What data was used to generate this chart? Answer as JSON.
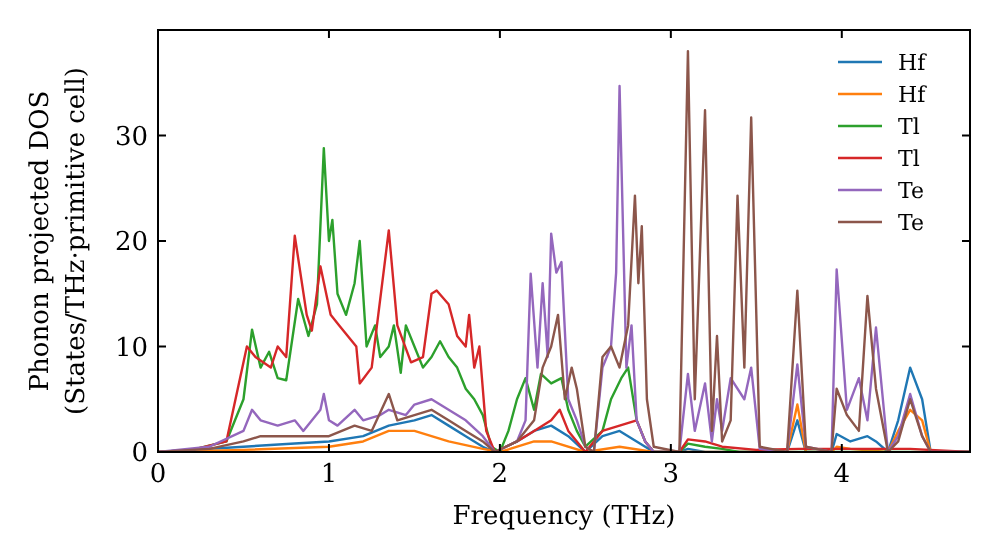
{
  "chart_data": {
    "type": "line",
    "xlabel": "Frequency (THz)",
    "ylabel": "Phonon projected DOS\n(States/THz·primitive cell)",
    "xlim": [
      0,
      4.75
    ],
    "xticks": [
      0,
      1,
      2,
      3,
      4
    ],
    "ylim": [
      0,
      40
    ],
    "yticks": [
      0,
      10,
      20,
      30
    ],
    "grid": false,
    "legend": "top right",
    "marker": "none",
    "line_style": "solid",
    "series": [
      {
        "name": "Hf",
        "color": "#1f77b4",
        "x": [
          0,
          0.5,
          0.8,
          1.0,
          1.2,
          1.35,
          1.5,
          1.6,
          1.7,
          1.8,
          1.9,
          1.97,
          2.1,
          2.2,
          2.3,
          2.4,
          2.5,
          2.6,
          2.7,
          2.85,
          2.9,
          3.05,
          3.1,
          3.2,
          3.68,
          3.74,
          3.79,
          3.94,
          3.97,
          4.05,
          4.15,
          4.2,
          4.27,
          4.33,
          4.4,
          4.47,
          4.52,
          4.75
        ],
        "values": [
          0,
          0.5,
          0.8,
          1,
          1.5,
          2.5,
          3,
          3.5,
          2.5,
          1.5,
          0.5,
          0,
          1,
          2,
          2.5,
          1.5,
          0,
          1.5,
          2,
          0.5,
          0,
          0,
          0.3,
          0,
          0,
          3,
          0,
          0,
          1.7,
          1,
          1.5,
          1,
          0,
          3,
          8,
          5,
          0,
          0
        ]
      },
      {
        "name": "Hf",
        "color": "#ff7f0e",
        "x": [
          0,
          0.5,
          1.0,
          1.2,
          1.35,
          1.5,
          1.6,
          1.7,
          1.9,
          2.0,
          2.2,
          2.3,
          2.5,
          2.7,
          2.9,
          3.68,
          3.74,
          3.79,
          3.94,
          3.97,
          4.05,
          4.27,
          4.33,
          4.4,
          4.47,
          4.52,
          4.75
        ],
        "values": [
          0,
          0.2,
          0.5,
          1,
          2,
          2,
          1.5,
          1,
          0.3,
          0,
          1,
          1,
          0,
          0.5,
          0,
          0,
          4.5,
          0,
          0,
          0.5,
          0.3,
          0,
          2,
          4,
          3,
          0,
          0
        ]
      },
      {
        "name": "Tl",
        "color": "#2ca02c",
        "x": [
          0,
          0.2,
          0.4,
          0.5,
          0.55,
          0.6,
          0.65,
          0.7,
          0.75,
          0.82,
          0.88,
          0.93,
          0.97,
          1.0,
          1.02,
          1.05,
          1.1,
          1.15,
          1.18,
          1.22,
          1.27,
          1.3,
          1.35,
          1.38,
          1.42,
          1.45,
          1.5,
          1.55,
          1.6,
          1.65,
          1.7,
          1.75,
          1.8,
          1.85,
          1.9,
          1.95,
          2.0,
          2.05,
          2.1,
          2.15,
          2.2,
          2.24,
          2.3,
          2.36,
          2.4,
          2.45,
          2.5,
          2.6,
          2.65,
          2.71,
          2.75,
          2.8,
          2.85,
          2.9,
          3.05,
          3.1,
          3.2,
          3.3,
          3.4,
          4.75
        ],
        "values": [
          0,
          0.2,
          1,
          5,
          11.6,
          8,
          9.5,
          7,
          6.8,
          14.5,
          11,
          14,
          28.8,
          20,
          22,
          15,
          13,
          16,
          20,
          10,
          12,
          9,
          10,
          12,
          7.5,
          12,
          10,
          8,
          9,
          10.5,
          9,
          8,
          6,
          5,
          3.5,
          0.5,
          0,
          2,
          5,
          7,
          4,
          7.4,
          6.5,
          7,
          4,
          2,
          0.5,
          2,
          5,
          7,
          8,
          3,
          1,
          0,
          0,
          0.8,
          0.5,
          0.3,
          0,
          0
        ]
      },
      {
        "name": "Tl",
        "color": "#d62728",
        "x": [
          0,
          0.2,
          0.4,
          0.52,
          0.57,
          0.66,
          0.7,
          0.75,
          0.8,
          0.87,
          0.9,
          0.95,
          1.01,
          1.06,
          1.16,
          1.18,
          1.25,
          1.35,
          1.4,
          1.48,
          1.55,
          1.6,
          1.63,
          1.7,
          1.75,
          1.8,
          1.82,
          1.85,
          1.88,
          1.92,
          1.97,
          2.1,
          2.2,
          2.3,
          2.35,
          2.4,
          2.5,
          2.6,
          2.7,
          2.8,
          2.85,
          2.9,
          3.05,
          3.1,
          3.2,
          3.3,
          3.5,
          3.75,
          4.4,
          4.75
        ],
        "values": [
          0,
          0.2,
          1,
          10,
          9,
          8,
          10,
          9,
          20.5,
          13,
          11.5,
          17.6,
          13,
          12,
          10,
          6.5,
          8,
          21,
          12,
          8.5,
          9,
          15,
          15.3,
          14,
          11,
          10,
          13,
          8,
          10,
          2,
          0,
          1,
          2,
          3,
          4,
          2,
          0,
          2,
          2.5,
          3,
          1,
          0,
          0,
          1.2,
          1,
          0.5,
          0.2,
          0.3,
          0.3,
          0
        ]
      },
      {
        "name": "Te",
        "color": "#9467bd",
        "x": [
          0,
          0.3,
          0.5,
          0.55,
          0.6,
          0.7,
          0.8,
          0.85,
          0.95,
          0.97,
          1.0,
          1.05,
          1.15,
          1.2,
          1.3,
          1.35,
          1.45,
          1.5,
          1.6,
          1.7,
          1.8,
          1.9,
          1.97,
          2.1,
          2.15,
          2.18,
          2.22,
          2.25,
          2.28,
          2.3,
          2.33,
          2.36,
          2.4,
          2.45,
          2.5,
          2.55,
          2.6,
          2.65,
          2.68,
          2.7,
          2.74,
          2.77,
          2.8,
          2.85,
          2.9,
          3.05,
          3.1,
          3.14,
          3.2,
          3.24,
          3.27,
          3.3,
          3.35,
          3.43,
          3.47,
          3.52,
          3.68,
          3.74,
          3.79,
          3.94,
          3.97,
          4.03,
          4.1,
          4.15,
          4.2,
          4.27,
          4.33,
          4.4,
          4.47,
          4.52,
          4.75
        ],
        "values": [
          0,
          0.5,
          2,
          4,
          3,
          2.5,
          3,
          2,
          4,
          5.5,
          3,
          2.5,
          4,
          3,
          3.5,
          4,
          3.5,
          4.5,
          5,
          4,
          3,
          1.5,
          0,
          1,
          3,
          16.9,
          8,
          16,
          9,
          20.7,
          17,
          18,
          5,
          3,
          0.5,
          0,
          8,
          10,
          17,
          34.7,
          8,
          12,
          3,
          1,
          0,
          0,
          7.4,
          2,
          6.5,
          1,
          5,
          2,
          7,
          5,
          8,
          0.3,
          0,
          8.3,
          0.5,
          0,
          17.3,
          4,
          7,
          3,
          11.8,
          0,
          1.5,
          5.5,
          1.5,
          0,
          0
        ]
      },
      {
        "name": "Te",
        "color": "#8c564b",
        "x": [
          0,
          0.3,
          0.5,
          0.6,
          0.8,
          1.0,
          1.15,
          1.25,
          1.35,
          1.4,
          1.5,
          1.6,
          1.7,
          1.8,
          1.9,
          1.97,
          2.1,
          2.2,
          2.25,
          2.3,
          2.34,
          2.38,
          2.42,
          2.45,
          2.5,
          2.55,
          2.6,
          2.65,
          2.7,
          2.75,
          2.79,
          2.81,
          2.83,
          2.86,
          2.9,
          3.05,
          3.1,
          3.14,
          3.2,
          3.24,
          3.27,
          3.3,
          3.35,
          3.39,
          3.43,
          3.47,
          3.52,
          3.68,
          3.74,
          3.79,
          3.94,
          3.97,
          4.03,
          4.1,
          4.15,
          4.2,
          4.27,
          4.33,
          4.4,
          4.47,
          4.52,
          4.75
        ],
        "values": [
          0,
          0.3,
          1,
          1.5,
          1.5,
          1.5,
          2.5,
          2,
          5.5,
          3,
          3.5,
          4,
          3,
          2,
          1,
          0,
          1,
          3,
          8,
          10,
          13,
          5,
          8,
          6,
          0.5,
          0,
          9,
          10,
          8,
          12,
          24.3,
          16,
          21.4,
          5,
          0.5,
          0,
          38,
          5,
          32.4,
          2,
          11,
          1,
          3,
          24.3,
          8,
          31.7,
          0.5,
          0,
          15.3,
          0.5,
          0,
          6,
          3.5,
          2,
          14.8,
          6,
          0,
          1,
          5,
          1.5,
          0,
          0
        ]
      }
    ]
  }
}
